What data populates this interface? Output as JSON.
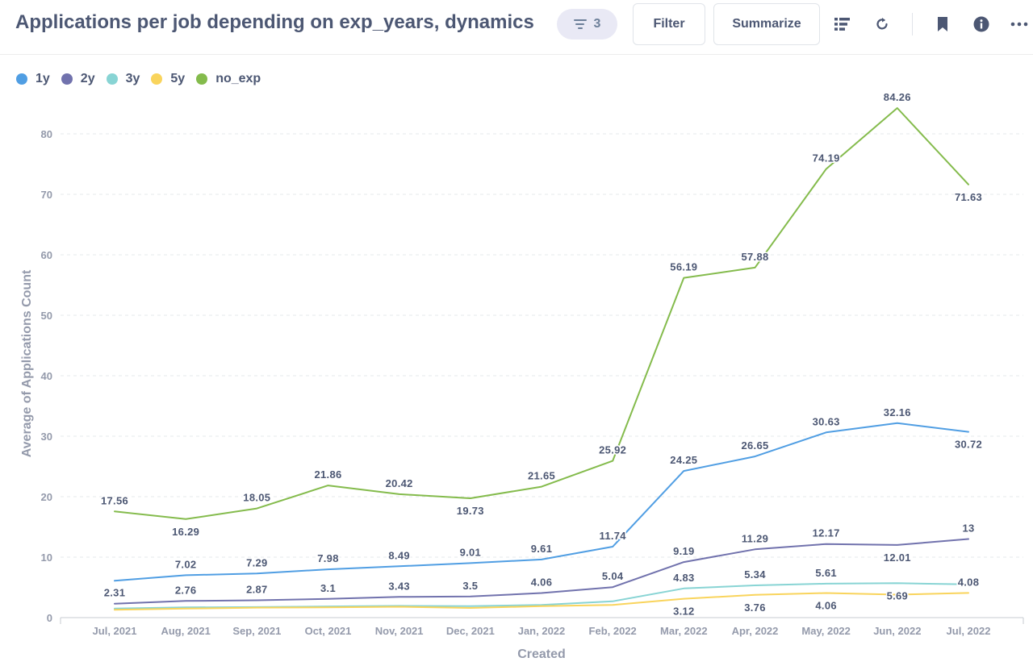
{
  "header": {
    "title": "Applications per job depending on exp_years, dynamics",
    "filter_count": "3",
    "filter_label": "Filter",
    "summarize_label": "Summarize"
  },
  "icons": {
    "filter_badge": "filter-lines-icon",
    "editor": "notebook-list-icon",
    "refresh": "refresh-icon",
    "bookmark": "bookmark-icon",
    "info": "info-icon",
    "more": "more-ellipsis-icon"
  },
  "colors": {
    "accent": "#509ee3",
    "badge_bg": "#e9e9f5"
  },
  "chart_data": {
    "type": "line",
    "xlabel": "Created",
    "ylabel": "Average of Applications Count",
    "ylim": [
      0,
      86
    ],
    "yticks": [
      0,
      10,
      20,
      30,
      40,
      50,
      60,
      70,
      80
    ],
    "grid": true,
    "legend_position": "top-left",
    "categories": [
      "Jul, 2021",
      "Aug, 2021",
      "Sep, 2021",
      "Oct, 2021",
      "Nov, 2021",
      "Dec, 2021",
      "Jan, 2022",
      "Feb, 2022",
      "Mar, 2022",
      "Apr, 2022",
      "May, 2022",
      "Jun, 2022",
      "Jul, 2022"
    ],
    "series": [
      {
        "name": "1y",
        "color": "#509ee3",
        "values": [
          6.1,
          7.02,
          7.29,
          7.98,
          8.49,
          9.01,
          9.61,
          11.74,
          24.25,
          26.65,
          30.63,
          32.16,
          30.72
        ],
        "labels": [
          null,
          "7.02",
          "7.29",
          "7.98",
          "8.49",
          "9.01",
          "9.61",
          "11.74",
          "24.25",
          "26.65",
          "30.63",
          "32.16",
          "30.72"
        ],
        "label_pos": [
          null,
          "above",
          "above",
          "above",
          "above",
          "above",
          "above",
          "above",
          "above",
          "above",
          "above",
          "above",
          "below"
        ]
      },
      {
        "name": "2y",
        "color": "#7172ad",
        "values": [
          2.31,
          2.76,
          2.87,
          3.1,
          3.43,
          3.5,
          4.06,
          5.04,
          9.19,
          11.29,
          12.17,
          12.01,
          13
        ],
        "labels": [
          "2.31",
          "2.76",
          "2.87",
          "3.1",
          "3.43",
          "3.5",
          "4.06",
          "5.04",
          "9.19",
          "11.29",
          "12.17",
          "12.01",
          "13"
        ],
        "label_pos": [
          "above",
          "above",
          "above",
          "above",
          "above",
          "above",
          "above",
          "above",
          "above",
          "above",
          "above",
          "below",
          "above"
        ]
      },
      {
        "name": "3y",
        "color": "#88d4d4",
        "values": [
          1.5,
          1.7,
          1.75,
          1.85,
          1.95,
          1.9,
          2.1,
          2.7,
          4.83,
          5.34,
          5.61,
          5.69,
          5.5
        ],
        "labels": [
          null,
          null,
          null,
          null,
          null,
          null,
          null,
          null,
          "4.83",
          "5.34",
          "5.61",
          "5.69",
          null
        ],
        "label_pos": [
          null,
          null,
          null,
          null,
          null,
          null,
          null,
          null,
          "above",
          "above",
          "above",
          "below",
          null
        ]
      },
      {
        "name": "5y",
        "color": "#f9d45c",
        "values": [
          1.3,
          1.5,
          1.65,
          1.7,
          1.8,
          1.6,
          1.9,
          2.1,
          3.12,
          3.76,
          4.06,
          3.8,
          4.08
        ],
        "labels": [
          null,
          null,
          null,
          null,
          null,
          null,
          null,
          null,
          "3.12",
          "3.76",
          "4.06",
          null,
          "4.08"
        ],
        "label_pos": [
          null,
          null,
          null,
          null,
          null,
          null,
          null,
          null,
          "below",
          "below",
          "below",
          null,
          "above"
        ]
      },
      {
        "name": "no_exp",
        "color": "#84bb4c",
        "values": [
          17.56,
          16.29,
          18.05,
          21.86,
          20.42,
          19.73,
          21.65,
          25.92,
          56.19,
          57.88,
          74.19,
          84.26,
          71.63
        ],
        "labels": [
          "17.56",
          "16.29",
          "18.05",
          "21.86",
          "20.42",
          "19.73",
          "21.65",
          "25.92",
          "56.19",
          "57.88",
          "74.19",
          "84.26",
          "71.63"
        ],
        "label_pos": [
          "above",
          "below",
          "above",
          "above",
          "above",
          "below",
          "above",
          "above",
          "above",
          "above",
          "above",
          "above",
          "below"
        ]
      }
    ]
  }
}
